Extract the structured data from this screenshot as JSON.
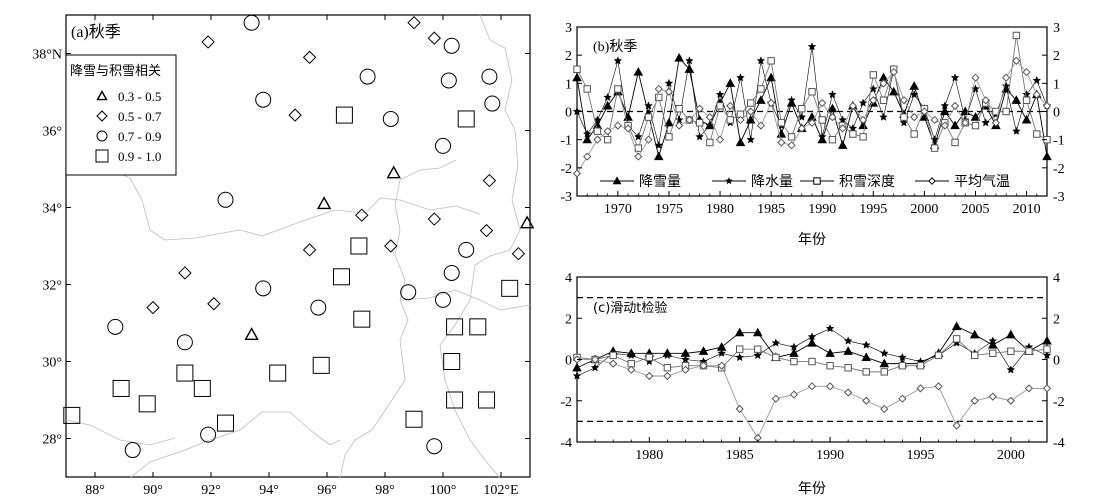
{
  "panel_a": {
    "tag": "(a)秋季",
    "legend_title": "降雪与积雪相关",
    "legend": [
      {
        "symbol": "triangle",
        "label": "0.3 - 0.5"
      },
      {
        "symbol": "diamond",
        "label": "0.5 - 0.7"
      },
      {
        "symbol": "circle",
        "label": "0.7 - 0.9"
      },
      {
        "symbol": "square",
        "label": "0.9 - 1.0"
      }
    ]
  },
  "panel_b": {
    "tag": "(b)秋季",
    "xlabel": "年份",
    "legend": [
      "降雪量",
      "降水量",
      "积雪深度",
      "平均气温"
    ]
  },
  "panel_c": {
    "tag": "(c)滑动t检验",
    "xlabel": "年份"
  },
  "chart_data": [
    {
      "type": "scatter",
      "title": "(a)秋季",
      "xlim": [
        87,
        103
      ],
      "ylim": [
        27,
        39
      ],
      "xticks": [
        88,
        90,
        92,
        94,
        96,
        98,
        100,
        102
      ],
      "xtick_labels": [
        "88°",
        "90°",
        "92°",
        "94°",
        "96°",
        "98°",
        "100°",
        "102°E"
      ],
      "yticks": [
        28,
        30,
        32,
        34,
        36,
        38
      ],
      "ytick_labels": [
        "28°",
        "30°",
        "32°",
        "34°",
        "36°",
        "38°N"
      ],
      "legend_title": "降雪与积雪相关",
      "series": [
        {
          "name": "0.3 - 0.5",
          "symbol": "triangle",
          "points": [
            [
              95.9,
              34.1
            ],
            [
              98.3,
              34.9
            ],
            [
              93.4,
              30.7
            ],
            [
              102.9,
              33.6
            ]
          ]
        },
        {
          "name": "0.5 - 0.7",
          "symbol": "diamond",
          "points": [
            [
              91.9,
              38.3
            ],
            [
              99.0,
              38.8
            ],
            [
              99.7,
              38.4
            ],
            [
              95.4,
              37.9
            ],
            [
              94.9,
              36.4
            ],
            [
              101.6,
              34.7
            ],
            [
              97.2,
              33.8
            ],
            [
              99.7,
              33.7
            ],
            [
              95.4,
              32.9
            ],
            [
              98.2,
              33.0
            ],
            [
              101.5,
              33.4
            ],
            [
              102.6,
              32.8
            ],
            [
              91.1,
              32.3
            ],
            [
              90.0,
              31.4
            ],
            [
              92.1,
              31.5
            ]
          ]
        },
        {
          "name": "0.7 - 0.9",
          "symbol": "circle",
          "points": [
            [
              93.4,
              38.8
            ],
            [
              100.3,
              38.2
            ],
            [
              97.4,
              37.4
            ],
            [
              100.2,
              37.3
            ],
            [
              101.6,
              37.4
            ],
            [
              101.7,
              36.7
            ],
            [
              93.8,
              36.8
            ],
            [
              98.2,
              36.3
            ],
            [
              100.0,
              35.6
            ],
            [
              92.5,
              34.2
            ],
            [
              100.8,
              32.9
            ],
            [
              100.3,
              32.3
            ],
            [
              93.8,
              31.9
            ],
            [
              98.8,
              31.8
            ],
            [
              95.7,
              31.4
            ],
            [
              100.0,
              31.6
            ],
            [
              88.7,
              30.9
            ],
            [
              91.1,
              30.5
            ],
            [
              89.3,
              27.7
            ],
            [
              91.9,
              28.1
            ],
            [
              99.7,
              27.8
            ]
          ]
        },
        {
          "name": "0.9 - 1.0",
          "symbol": "square",
          "points": [
            [
              96.6,
              36.4
            ],
            [
              100.8,
              36.3
            ],
            [
              97.1,
              33.0
            ],
            [
              96.5,
              32.2
            ],
            [
              102.3,
              31.9
            ],
            [
              97.2,
              31.1
            ],
            [
              100.4,
              30.9
            ],
            [
              101.2,
              30.9
            ],
            [
              91.1,
              29.7
            ],
            [
              94.3,
              29.7
            ],
            [
              95.8,
              29.9
            ],
            [
              100.3,
              30.0
            ],
            [
              88.9,
              29.3
            ],
            [
              91.7,
              29.3
            ],
            [
              89.8,
              28.9
            ],
            [
              87.2,
              28.6
            ],
            [
              92.5,
              28.4
            ],
            [
              99.0,
              28.5
            ],
            [
              100.4,
              29.0
            ],
            [
              101.5,
              29.0
            ]
          ]
        }
      ]
    },
    {
      "type": "line",
      "title": "(b)秋季",
      "xlabel": "年份",
      "xlim": [
        1966,
        2012
      ],
      "ylim": [
        -3,
        3
      ],
      "xticks": [
        1970,
        1975,
        1980,
        1985,
        1990,
        1995,
        2000,
        2005,
        2010
      ],
      "yticks": [
        -3,
        -2,
        -1,
        0,
        1,
        2,
        3
      ],
      "reference_line": 0,
      "x": [
        1966,
        1967,
        1968,
        1969,
        1970,
        1971,
        1972,
        1973,
        1974,
        1975,
        1976,
        1977,
        1978,
        1979,
        1980,
        1981,
        1982,
        1983,
        1984,
        1985,
        1986,
        1987,
        1988,
        1989,
        1990,
        1991,
        1992,
        1993,
        1994,
        1995,
        1996,
        1997,
        1998,
        1999,
        2000,
        2001,
        2002,
        2003,
        2004,
        2005,
        2006,
        2007,
        2008,
        2009,
        2010,
        2011,
        2012
      ],
      "series": [
        {
          "name": "降雪量",
          "marker": "triangle",
          "values": [
            1.2,
            -1.0,
            -0.5,
            0.2,
            0.7,
            -0.2,
            1.4,
            -0.1,
            -1.6,
            -0.4,
            1.9,
            1.5,
            -0.3,
            -0.5,
            0.3,
            1.0,
            -1.1,
            -0.3,
            0.4,
            1.2,
            -0.8,
            0.3,
            -0.6,
            -0.2,
            -1.0,
            0.1,
            -1.2,
            0.2,
            -0.5,
            0.3,
            1.2,
            0.7,
            -0.1,
            0.9,
            -0.2,
            -1.2,
            0.0,
            -0.5,
            0.0,
            -0.2,
            0.2,
            -0.5,
            0.8,
            0.4,
            -0.3,
            0.6,
            -1.6
          ]
        },
        {
          "name": "降水量",
          "marker": "star",
          "values": [
            0.0,
            -0.8,
            -0.3,
            0.5,
            1.8,
            -0.5,
            -0.9,
            0.2,
            -1.2,
            1.0,
            -0.3,
            1.8,
            -0.9,
            -0.5,
            0.6,
            -0.4,
            1.2,
            -1.0,
            1.8,
            0.3,
            -0.5,
            0.4,
            -0.2,
            2.3,
            -0.9,
            0.6,
            -0.3,
            -0.6,
            0.3,
            0.8,
            -0.2,
            1.5,
            -0.4,
            0.6,
            0.1,
            -1.0,
            0.2,
            1.2,
            -0.3,
            0.8,
            -0.4,
            -0.1,
            0.9,
            -0.7,
            0.6,
            1.1,
            0.2
          ]
        },
        {
          "name": "积雪深度",
          "marker": "square",
          "values": [
            1.5,
            0.8,
            -0.7,
            -1.0,
            0.8,
            -0.5,
            -1.3,
            -0.2,
            0.5,
            -0.9,
            0.1,
            -0.3,
            -0.4,
            -1.1,
            0.2,
            -0.3,
            -0.1,
            0.3,
            0.8,
            1.8,
            -0.4,
            -0.9,
            0.1,
            0.7,
            -0.3,
            -1.0,
            -0.5,
            -0.8,
            -0.9,
            1.3,
            0.4,
            1.5,
            -0.2,
            -0.8,
            0.1,
            -1.3,
            -0.4,
            -1.1,
            -0.4,
            -0.5,
            0.3,
            0.0,
            0.0,
            2.7,
            0.4,
            -0.8,
            -1.0
          ]
        },
        {
          "name": "平均气温",
          "marker": "diamond",
          "values": [
            -2.2,
            -1.6,
            -1.0,
            -0.7,
            -0.5,
            -0.6,
            -1.6,
            -1.0,
            0.8,
            0.7,
            -0.5,
            -0.3,
            0.1,
            -0.2,
            -1.0,
            0.2,
            -0.3,
            0.0,
            -0.5,
            0.3,
            -1.1,
            -1.2,
            -0.6,
            -0.4,
            0.3,
            -0.2,
            -0.6,
            0.2,
            -0.3,
            0.4,
            1.0,
            1.4,
            0.4,
            -0.2,
            0.0,
            -0.3,
            -0.5,
            0.2,
            -0.4,
            1.2,
            0.4,
            -0.4,
            1.2,
            1.8,
            1.4,
            0.6,
            0.2
          ]
        }
      ]
    },
    {
      "type": "line",
      "title": "(c)滑动t检验",
      "xlabel": "年份",
      "xlim": [
        1976,
        2002
      ],
      "ylim": [
        -4,
        4
      ],
      "xticks": [
        1980,
        1985,
        1990,
        1995,
        2000
      ],
      "yticks": [
        -4,
        -2,
        0,
        2,
        4
      ],
      "reference_lines": [
        3,
        -3
      ],
      "x": [
        1976,
        1977,
        1978,
        1979,
        1980,
        1981,
        1982,
        1983,
        1984,
        1985,
        1986,
        1987,
        1988,
        1989,
        1990,
        1991,
        1992,
        1993,
        1994,
        1995,
        1996,
        1997,
        1998,
        1999,
        2000,
        2001,
        2002
      ],
      "series": [
        {
          "name": "降雪量",
          "marker": "triangle",
          "values": [
            -0.4,
            0.0,
            0.4,
            0.3,
            0.3,
            0.3,
            0.3,
            0.4,
            0.6,
            1.3,
            1.3,
            0.1,
            0.3,
            0.8,
            0.3,
            0.4,
            0.1,
            -0.2,
            -0.2,
            -0.2,
            0.3,
            1.6,
            1.2,
            0.7,
            1.2,
            0.4,
            0.9
          ]
        },
        {
          "name": "降水量",
          "marker": "star",
          "values": [
            -0.8,
            -0.4,
            0.3,
            0.2,
            -0.1,
            0.2,
            0.0,
            -0.1,
            0.3,
            0.1,
            0.2,
            0.8,
            0.6,
            1.1,
            1.5,
            0.9,
            0.7,
            0.3,
            0.1,
            -0.1,
            0.2,
            0.8,
            0.3,
            0.9,
            -0.5,
            0.6,
            0.2
          ]
        },
        {
          "name": "积雪深度",
          "marker": "square",
          "values": [
            0.1,
            0.0,
            0.2,
            -0.2,
            0.1,
            -0.4,
            -0.3,
            -0.3,
            -0.4,
            0.5,
            0.5,
            0.1,
            -0.1,
            -0.1,
            -0.3,
            -0.4,
            -0.6,
            -0.6,
            -0.3,
            -0.3,
            0.2,
            1.0,
            0.2,
            0.3,
            0.4,
            0.4,
            0.5
          ]
        },
        {
          "name": "平均气温",
          "marker": "diamond",
          "values": [
            0.0,
            0.0,
            -0.2,
            -0.5,
            -0.8,
            -0.8,
            -0.5,
            -0.3,
            -0.3,
            -2.4,
            -3.8,
            -1.9,
            -1.7,
            -1.3,
            -1.3,
            -1.6,
            -2.0,
            -2.4,
            -1.9,
            -1.4,
            -1.3,
            -3.2,
            -2.0,
            -1.8,
            -2.0,
            -1.4,
            -1.4
          ]
        }
      ]
    }
  ]
}
